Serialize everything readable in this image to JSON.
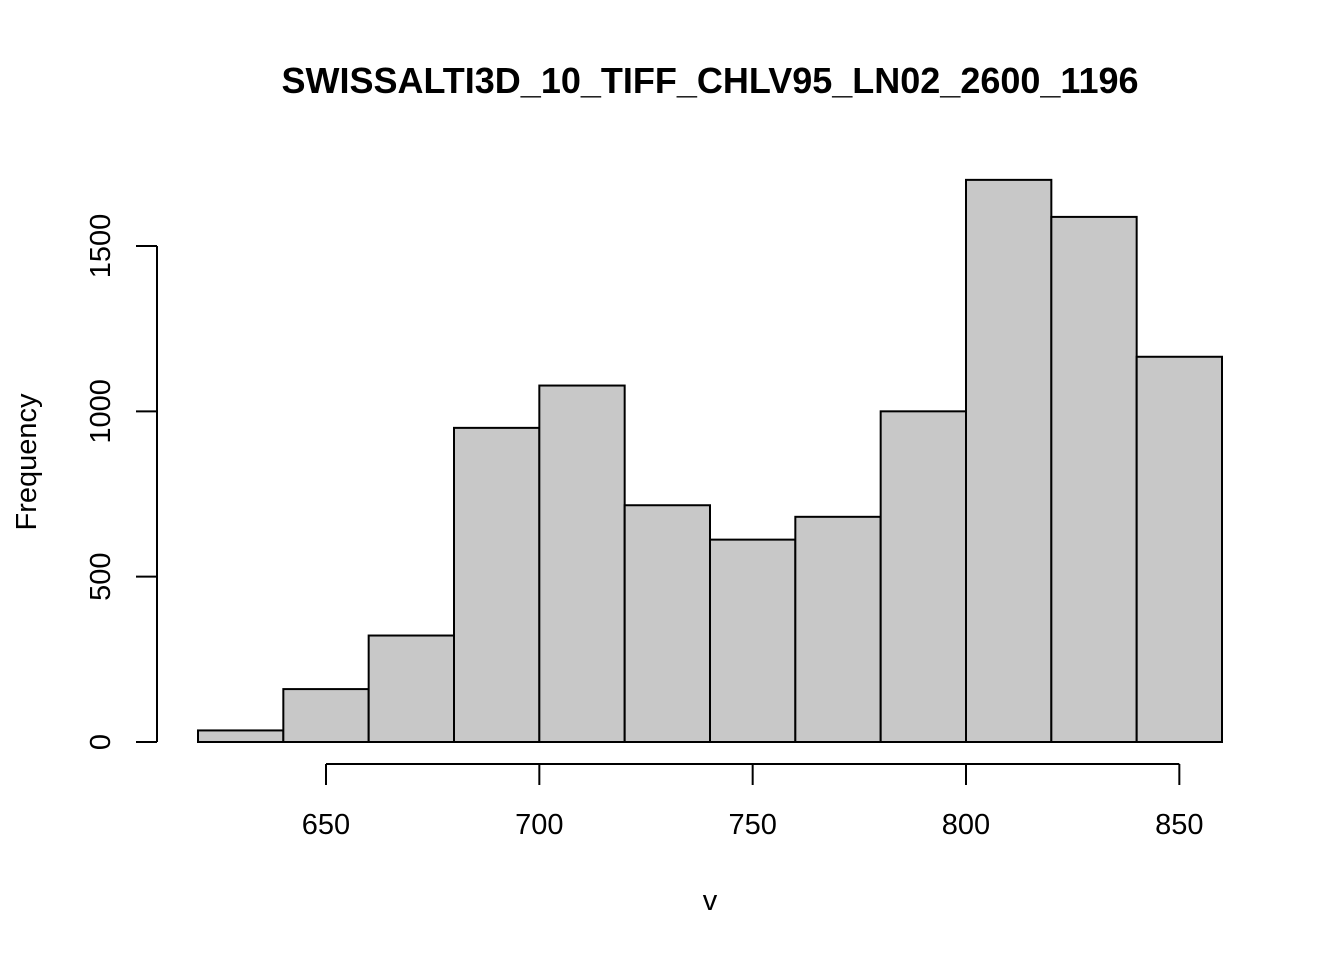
{
  "chart_data": {
    "type": "histogram",
    "title": "SWISSALTI3D_10_TIFF_CHLV95_LN02_2600_1196",
    "xlabel": "v",
    "ylabel": "Frequency",
    "bins": [
      {
        "start": 620,
        "end": 640,
        "count": 35
      },
      {
        "start": 640,
        "end": 660,
        "count": 160
      },
      {
        "start": 660,
        "end": 680,
        "count": 322
      },
      {
        "start": 680,
        "end": 700,
        "count": 950
      },
      {
        "start": 700,
        "end": 720,
        "count": 1078
      },
      {
        "start": 720,
        "end": 740,
        "count": 716
      },
      {
        "start": 740,
        "end": 760,
        "count": 612
      },
      {
        "start": 760,
        "end": 780,
        "count": 681
      },
      {
        "start": 780,
        "end": 800,
        "count": 1000
      },
      {
        "start": 800,
        "end": 820,
        "count": 1700
      },
      {
        "start": 820,
        "end": 840,
        "count": 1588
      },
      {
        "start": 840,
        "end": 860,
        "count": 1165
      }
    ],
    "xticks": [
      650,
      700,
      750,
      800,
      850
    ],
    "yticks": [
      0,
      500,
      1000,
      1500
    ],
    "xlim": [
      620,
      860
    ],
    "ylim": [
      0,
      1700
    ],
    "bar_color": "#c8c8c8",
    "grid": false
  }
}
